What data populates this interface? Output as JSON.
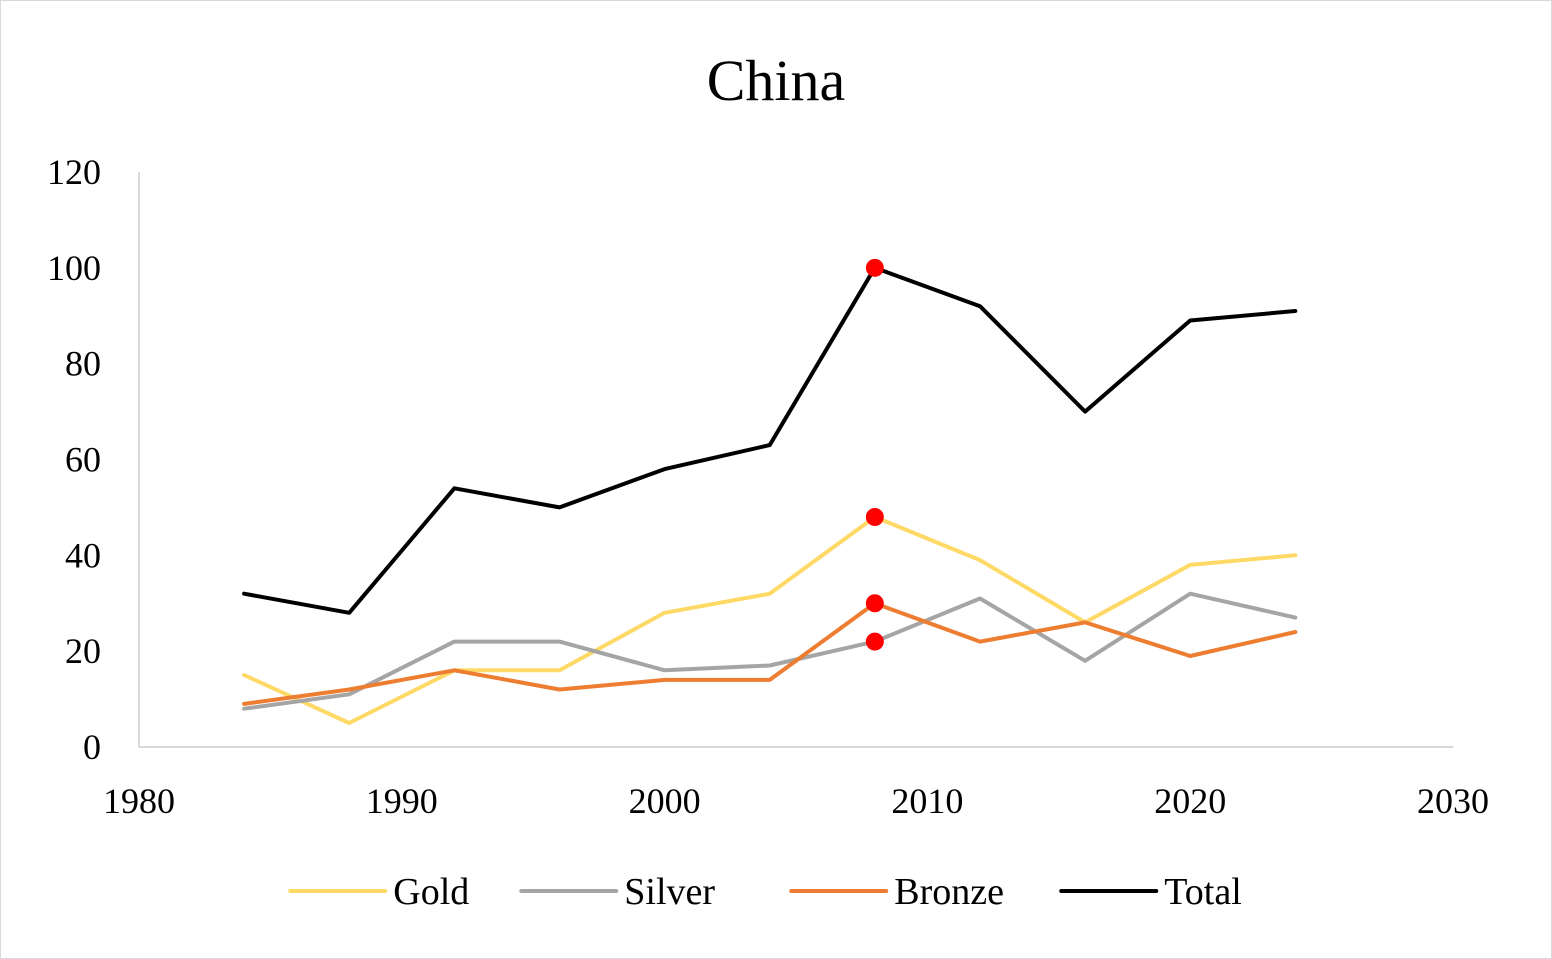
{
  "chart_data": {
    "type": "line",
    "title": "China",
    "xlabel": "",
    "ylabel": "",
    "xlim": [
      1980,
      2030
    ],
    "ylim": [
      0,
      120
    ],
    "xticks": [
      1980,
      1990,
      2000,
      2010,
      2020,
      2030
    ],
    "yticks": [
      0,
      20,
      40,
      60,
      80,
      100,
      120
    ],
    "x": [
      1984,
      1988,
      1992,
      1996,
      2000,
      2004,
      2008,
      2012,
      2016,
      2020,
      2024
    ],
    "series": [
      {
        "name": "Gold",
        "color": "#FFD966",
        "values": [
          15,
          5,
          16,
          16,
          28,
          32,
          48,
          39,
          26,
          38,
          40
        ]
      },
      {
        "name": "Silver",
        "color": "#A5A5A5",
        "values": [
          8,
          11,
          22,
          22,
          16,
          17,
          22,
          31,
          18,
          32,
          27
        ]
      },
      {
        "name": "Bronze",
        "color": "#ED7D31",
        "values": [
          9,
          12,
          16,
          12,
          14,
          14,
          30,
          22,
          26,
          19,
          24
        ]
      },
      {
        "name": "Total",
        "color": "#000000",
        "values": [
          32,
          28,
          54,
          50,
          58,
          63,
          100,
          92,
          70,
          89,
          91
        ]
      }
    ],
    "highlights": [
      {
        "x": 2008,
        "y": 100,
        "color": "#FF0000"
      },
      {
        "x": 2008,
        "y": 48,
        "color": "#FF0000"
      },
      {
        "x": 2008,
        "y": 30,
        "color": "#FF0000"
      },
      {
        "x": 2008,
        "y": 22,
        "color": "#FF0000"
      }
    ],
    "legend_position": "bottom",
    "grid": false
  }
}
